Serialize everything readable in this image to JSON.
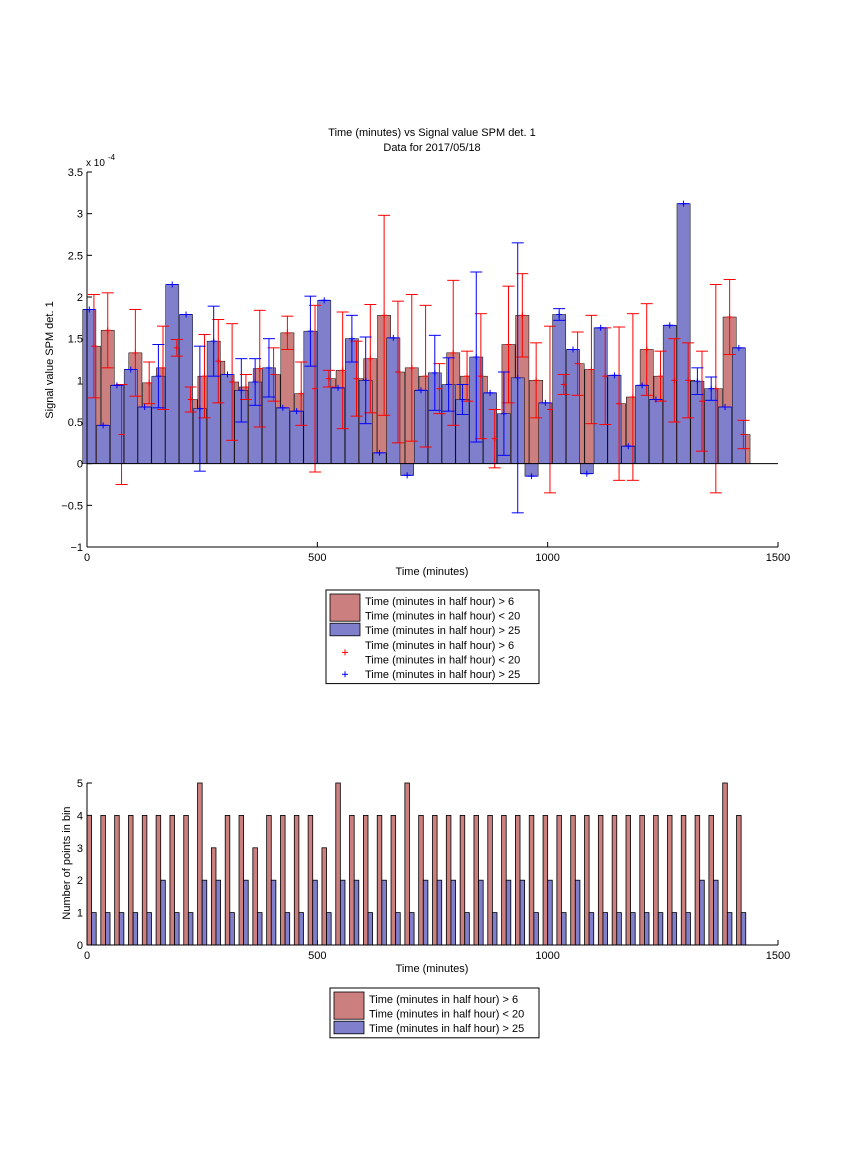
{
  "colors": {
    "red_fill": "#cc7f7f",
    "blue_fill": "#7f7fcc",
    "red_line": "#ff0000",
    "blue_line": "#0000ff",
    "axis": "#000000"
  },
  "chart_data": [
    {
      "type": "bar",
      "title": "Time (minutes) vs Signal value SPM det. 1",
      "subtitle": "Data for 2017/05/18",
      "xlabel": "Time (minutes)",
      "ylabel": "Signal value SPM det. 1",
      "y_multiplier_label": "x 10",
      "y_multiplier_exp": "-4",
      "xlim": [
        0,
        1500
      ],
      "ylim": [
        -1,
        3.5
      ],
      "xticks": [
        "0",
        "500",
        "1000",
        "1500"
      ],
      "yticks": [
        "−1",
        "−0.5",
        "0",
        "0.5",
        "1",
        "1.5",
        "2",
        "2.5",
        "3",
        "3.5"
      ],
      "legend": [
        "Time (minutes in half hour) > 6",
        "Time (minutes in half hour) < 20",
        "Time (minutes in half hour) > 25",
        "Time (minutes in half hour) > 6",
        "Time (minutes in half hour) < 20",
        "Time (minutes in half hour) > 25"
      ],
      "series": [
        {
          "name": "Time (minutes in half hour) > 6 / < 20",
          "x": [
            15,
            45,
            75,
            105,
            135,
            165,
            195,
            225,
            255,
            285,
            315,
            345,
            375,
            405,
            435,
            465,
            495,
            525,
            555,
            585,
            615,
            645,
            675,
            705,
            735,
            765,
            795,
            825,
            855,
            885,
            915,
            945,
            975,
            1005,
            1035,
            1065,
            1095,
            1125,
            1155,
            1185,
            1215,
            1245,
            1275,
            1305,
            1335,
            1365,
            1395,
            1425
          ],
          "values": [
            1.41,
            1.6,
            0.35,
            1.33,
            0.97,
            1.15,
            1.39,
            0.77,
            1.05,
            1.23,
            0.98,
            0.92,
            1.14,
            1.07,
            1.57,
            0.84,
            0.9,
            1.02,
            1.12,
            1.02,
            1.26,
            1.78,
            1.1,
            1.15,
            1.05,
            0.9,
            1.33,
            1.05,
            1.05,
            0.3,
            1.43,
            1.78,
            1.0,
            0.65,
            0.95,
            1.2,
            1.13,
            1.05,
            0.72,
            0.8,
            1.37,
            1.05,
            1.0,
            1.0,
            0.75,
            0.9,
            1.76,
            0.35
          ],
          "err": [
            0.62,
            0.45,
            0.6,
            0.52,
            0.25,
            0.5,
            0.1,
            0.15,
            0.5,
            0.5,
            0.7,
            0.15,
            0.7,
            0.32,
            0.2,
            0.38,
            1.0,
            0.1,
            0.7,
            0.45,
            0.65,
            1.2,
            0.85,
            0.88,
            0.85,
            0.3,
            0.87,
            0.3,
            0.75,
            0.35,
            0.7,
            0.5,
            0.45,
            1.0,
            0.12,
            0.38,
            0.65,
            0.58,
            0.92,
            1.0,
            0.55,
            0.3,
            0.5,
            0.45,
            0.6,
            1.25,
            0.45,
            0.17
          ]
        },
        {
          "name": "Time (minutes in half hour) > 25",
          "x": [
            5,
            35,
            65,
            95,
            125,
            155,
            185,
            215,
            245,
            275,
            305,
            335,
            365,
            395,
            425,
            455,
            485,
            515,
            545,
            575,
            605,
            635,
            665,
            695,
            725,
            755,
            785,
            815,
            845,
            875,
            905,
            935,
            965,
            995,
            1025,
            1055,
            1085,
            1115,
            1145,
            1175,
            1205,
            1235,
            1265,
            1295,
            1325,
            1355,
            1385,
            1415
          ],
          "values": [
            1.85,
            0.46,
            0.94,
            1.13,
            0.68,
            1.05,
            2.15,
            1.79,
            0.66,
            1.47,
            1.07,
            0.88,
            0.98,
            1.15,
            0.67,
            0.63,
            1.59,
            1.96,
            0.91,
            1.5,
            1.0,
            0.13,
            1.51,
            -0.14,
            0.88,
            1.09,
            0.95,
            0.77,
            1.28,
            0.85,
            0.6,
            1.03,
            -0.15,
            0.73,
            1.79,
            1.37,
            -0.12,
            1.63,
            1.06,
            0.21,
            0.94,
            0.77,
            1.66,
            3.12,
            0.99,
            0.9,
            0.68,
            1.39
          ],
          "err": [
            0.0,
            0.0,
            0.0,
            0.0,
            0.0,
            0.38,
            0.0,
            0.0,
            0.75,
            0.42,
            0.0,
            0.38,
            0.28,
            0.35,
            0.0,
            0.0,
            0.42,
            0.0,
            0.0,
            0.28,
            0.52,
            0.0,
            0.0,
            0.0,
            0.0,
            0.45,
            0.32,
            0.18,
            1.02,
            0.0,
            0.5,
            1.62,
            0.0,
            0.0,
            0.07,
            0.0,
            0.0,
            0.0,
            0.0,
            0.0,
            0.0,
            0.0,
            0.0,
            0.0,
            0.16,
            0.14,
            0.0,
            0.0
          ]
        }
      ]
    },
    {
      "type": "bar",
      "xlabel": "Time (minutes)",
      "ylabel": "Number of points in bin",
      "xlim": [
        0,
        1500
      ],
      "ylim": [
        0,
        5
      ],
      "xticks": [
        "0",
        "500",
        "1000",
        "1500"
      ],
      "yticks": [
        "0",
        "1",
        "2",
        "3",
        "4",
        "5"
      ],
      "legend": [
        "Time (minutes in half hour) > 6",
        "Time (minutes in half hour) < 20",
        "Time (minutes in half hour) > 25"
      ],
      "series": [
        {
          "name": "Time (minutes in half hour) > 6 / < 20",
          "x": [
            5,
            35,
            65,
            95,
            125,
            155,
            185,
            215,
            245,
            275,
            305,
            335,
            365,
            395,
            425,
            455,
            485,
            515,
            545,
            575,
            605,
            635,
            665,
            695,
            725,
            755,
            785,
            815,
            845,
            875,
            905,
            935,
            965,
            995,
            1025,
            1055,
            1085,
            1115,
            1145,
            1175,
            1205,
            1235,
            1265,
            1295,
            1325,
            1355,
            1385,
            1415
          ],
          "values": [
            4,
            4,
            4,
            4,
            4,
            4,
            4,
            4,
            5,
            3,
            4,
            4,
            3,
            4,
            4,
            4,
            4,
            3,
            5,
            4,
            4,
            4,
            4,
            5,
            4,
            4,
            4,
            4,
            4,
            4,
            4,
            4,
            4,
            4,
            4,
            4,
            4,
            4,
            4,
            4,
            4,
            4,
            4,
            4,
            4,
            4,
            5,
            4
          ]
        },
        {
          "name": "Time (minutes in half hour) > 25",
          "x": [
            15,
            45,
            75,
            105,
            135,
            165,
            195,
            225,
            255,
            285,
            315,
            345,
            375,
            405,
            435,
            465,
            495,
            525,
            555,
            585,
            615,
            645,
            675,
            705,
            735,
            765,
            795,
            825,
            855,
            885,
            915,
            945,
            975,
            1005,
            1035,
            1065,
            1095,
            1125,
            1155,
            1185,
            1215,
            1245,
            1275,
            1305,
            1335,
            1365,
            1395,
            1425
          ],
          "values": [
            1,
            1,
            1,
            1,
            1,
            2,
            1,
            1,
            2,
            2,
            1,
            2,
            1,
            2,
            1,
            1,
            2,
            1,
            2,
            2,
            1,
            2,
            1,
            1,
            2,
            2,
            2,
            1,
            2,
            1,
            2,
            2,
            1,
            2,
            1,
            2,
            1,
            1,
            1,
            1,
            1,
            1,
            1,
            1,
            2,
            2,
            1,
            1
          ]
        }
      ]
    }
  ]
}
